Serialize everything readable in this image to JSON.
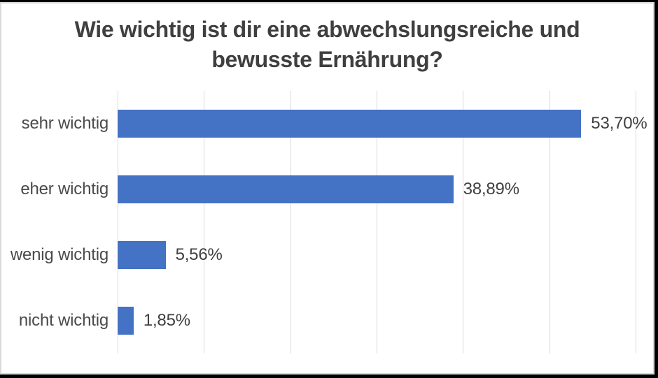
{
  "chart": {
    "title_lines": [
      "Wie wichtig ist dir eine abwechslungsreiche und",
      "bewusste Ernährung?"
    ]
  },
  "chart_data": {
    "type": "bar",
    "orientation": "horizontal",
    "title": "Wie wichtig ist dir eine abwechslungsreiche und bewusste Ernährung?",
    "categories": [
      "sehr wichtig",
      "eher wichtig",
      "wenig wichtig",
      "nicht wichtig"
    ],
    "values": [
      53.7,
      38.89,
      5.56,
      1.85
    ],
    "value_labels": [
      "53,70%",
      "38,89%",
      "5,56%",
      "1,85%"
    ],
    "xlabel": "",
    "ylabel": "",
    "xlim": [
      0,
      60
    ],
    "tick_step": 10,
    "grid": "vertical-gridlines-only",
    "legend": "none",
    "bar_color": "#4472C4",
    "gridline_color": "#D9D9D9",
    "category_label_color": "#4A4A4A",
    "value_label_color": "#3F3F3F",
    "title_color": "#3F3F3F",
    "frame_color": "#000000",
    "chart_border_color": "#D9D9D9"
  }
}
